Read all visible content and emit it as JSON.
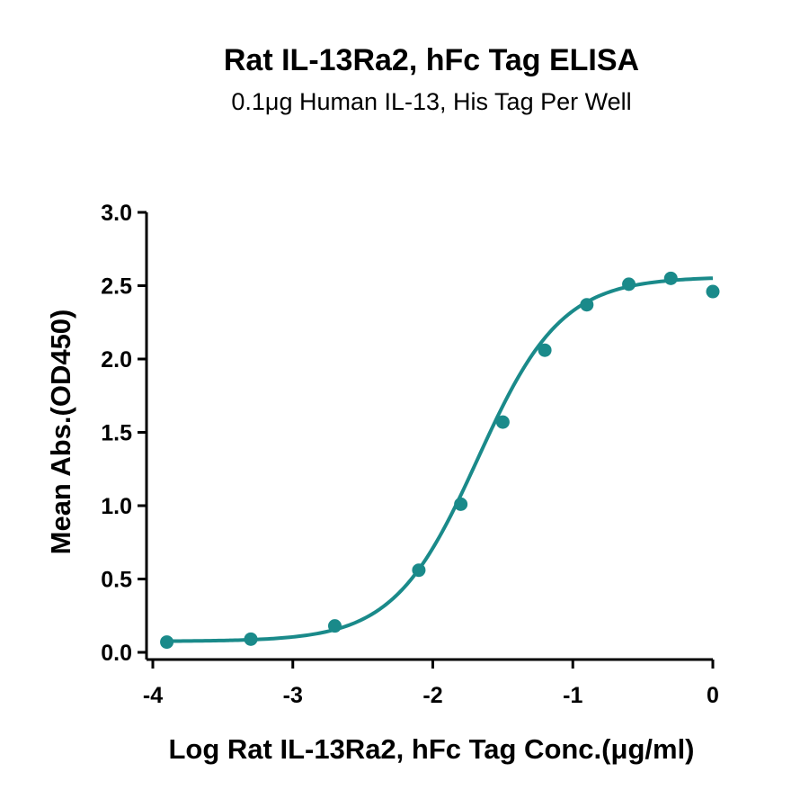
{
  "chart_data": {
    "type": "scatter",
    "title": "Rat IL-13Ra2, hFc Tag ELISA",
    "subtitle": "0.1μg Human IL-13, His Tag Per Well",
    "xlabel": "Log Rat IL-13Ra2, hFc Tag Conc.(μg/ml)",
    "ylabel": "Mean Abs.(OD450)",
    "xlim": [
      -4,
      0
    ],
    "ylim": [
      0,
      3
    ],
    "x_ticks": [
      -4,
      -3,
      -2,
      -1,
      0
    ],
    "x_tick_labels": [
      "-4",
      "-3",
      "-2",
      "-1",
      "0"
    ],
    "y_ticks": [
      0,
      0.5,
      1,
      1.5,
      2,
      2.5,
      3
    ],
    "y_tick_labels": [
      "0.0",
      "0.5",
      "1.0",
      "1.5",
      "2.0",
      "2.5",
      "3.0"
    ],
    "grid": false,
    "color": "#1a8a8a",
    "series": [
      {
        "x": [
          -3.9,
          -3.3,
          -2.7,
          -2.1,
          -1.8,
          -1.5,
          -1.2,
          -0.9,
          -0.6,
          -0.3,
          0.0
        ],
        "y": [
          0.07,
          0.09,
          0.18,
          0.56,
          1.01,
          1.57,
          2.06,
          2.37,
          2.51,
          2.55,
          2.46
        ]
      }
    ],
    "fit": {
      "model": "4PL",
      "bottom": 0.075,
      "top": 2.56,
      "log_ec50": -1.68,
      "hill_slope": 1.45
    }
  }
}
